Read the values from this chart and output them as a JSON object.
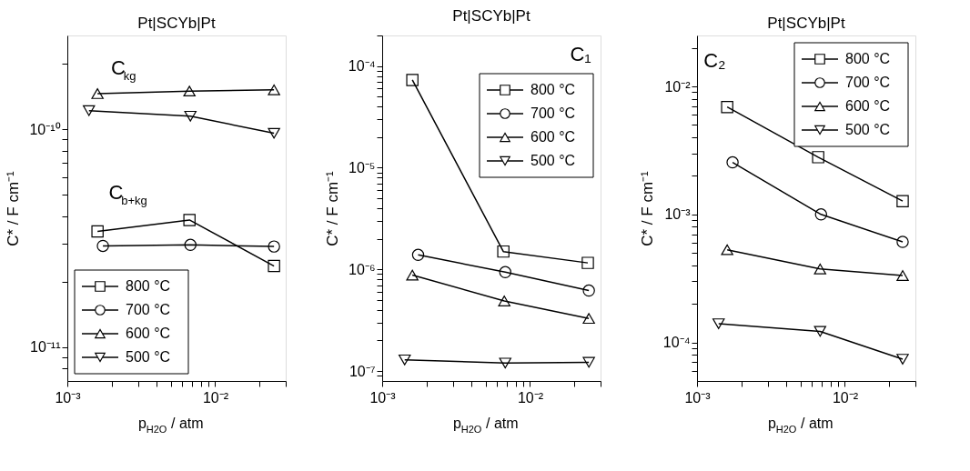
{
  "chart_data": [
    {
      "type": "line",
      "title": "Pt|SCYb|Pt",
      "xlabel": "p$_{H2O}$ / atm",
      "ylabel": "C* / F cm⁻¹",
      "log": "xy",
      "grid": false,
      "legend": "bottom left",
      "line_style": "solid",
      "annotations": [
        "C$_{kg}$",
        "C$_{b+kg}$"
      ],
      "xlim": [
        0.001,
        0.03
      ],
      "ylim": [
        7e-12,
        2.7e-10
      ],
      "xticks": [
        {
          "value": 0.001,
          "label": "10⁻³"
        },
        {
          "value": 0.002,
          "label": null
        },
        {
          "value": 0.003,
          "label": null
        },
        {
          "value": 0.004,
          "label": null
        },
        {
          "value": 0.005,
          "label": null
        },
        {
          "value": 0.006,
          "label": null
        },
        {
          "value": 0.007,
          "label": null
        },
        {
          "value": 0.008,
          "label": null
        },
        {
          "value": 0.009,
          "label": null
        },
        {
          "value": 0.01,
          "label": "10⁻²"
        },
        {
          "value": 0.02,
          "label": null
        },
        {
          "value": 0.03,
          "label": null
        }
      ],
      "yticks": [
        {
          "value": 8e-12,
          "label": null
        },
        {
          "value": 9e-12,
          "label": null
        },
        {
          "value": 1e-11,
          "label": "10⁻¹¹"
        },
        {
          "value": 2e-11,
          "label": null
        },
        {
          "value": 3e-11,
          "label": null
        },
        {
          "value": 4e-11,
          "label": null
        },
        {
          "value": 5e-11,
          "label": null
        },
        {
          "value": 6e-11,
          "label": null
        },
        {
          "value": 7e-11,
          "label": null
        },
        {
          "value": 8e-11,
          "label": null
        },
        {
          "value": 9e-11,
          "label": null
        },
        {
          "value": 1e-10,
          "label": "10⁻¹⁰"
        },
        {
          "value": 2e-10,
          "label": null
        }
      ],
      "series": [
        {
          "name": "800 °C",
          "color": "#000000",
          "marker": "square",
          "x": [
            0.0016,
            0.0067,
            0.025
          ],
          "values": [
            3.4e-11,
            3.84e-11,
            2.36e-11
          ]
        },
        {
          "name": "700 °C",
          "color": "#000000",
          "marker": "circle",
          "x": [
            0.00174,
            0.0068,
            0.025
          ],
          "values": [
            2.92e-11,
            2.95e-11,
            2.9e-11
          ]
        },
        {
          "name": "600 °C",
          "color": "#000000",
          "marker": "triangle",
          "x": [
            0.0016,
            0.0067,
            0.025
          ],
          "values": [
            1.46e-10,
            1.5e-10,
            1.52e-10
          ]
        },
        {
          "name": "500 °C",
          "color": "#000000",
          "marker": "triangle-down",
          "x": [
            0.0014,
            0.0068,
            0.025
          ],
          "values": [
            1.22e-10,
            1.15e-10,
            9.6e-11
          ]
        }
      ]
    },
    {
      "type": "line",
      "title": "Pt|SCYb|Pt",
      "xlabel": "p$_{H2O}$ / atm",
      "ylabel": "C* / F cm⁻¹",
      "log": "xy",
      "grid": false,
      "legend": "top right",
      "line_style": "solid",
      "annotations": [
        "C₁"
      ],
      "xlim": [
        0.001,
        0.03
      ],
      "ylim": [
        8e-08,
        0.0002
      ],
      "xticks": [
        {
          "value": 0.001,
          "label": "10⁻³"
        },
        {
          "value": 0.002,
          "label": null
        },
        {
          "value": 0.003,
          "label": null
        },
        {
          "value": 0.004,
          "label": null
        },
        {
          "value": 0.005,
          "label": null
        },
        {
          "value": 0.006,
          "label": null
        },
        {
          "value": 0.007,
          "label": null
        },
        {
          "value": 0.008,
          "label": null
        },
        {
          "value": 0.009,
          "label": null
        },
        {
          "value": 0.01,
          "label": "10⁻²"
        },
        {
          "value": 0.02,
          "label": null
        },
        {
          "value": 0.03,
          "label": null
        }
      ],
      "yticks": [
        {
          "value": 9e-08,
          "label": null
        },
        {
          "value": 1e-07,
          "label": "10⁻⁷"
        },
        {
          "value": 2e-07,
          "label": null
        },
        {
          "value": 3e-07,
          "label": null
        },
        {
          "value": 4e-07,
          "label": null
        },
        {
          "value": 5e-07,
          "label": null
        },
        {
          "value": 6e-07,
          "label": null
        },
        {
          "value": 7e-07,
          "label": null
        },
        {
          "value": 8e-07,
          "label": null
        },
        {
          "value": 9e-07,
          "label": null
        },
        {
          "value": 1e-06,
          "label": "10⁻⁶"
        },
        {
          "value": 2e-06,
          "label": null
        },
        {
          "value": 3e-06,
          "label": null
        },
        {
          "value": 4e-06,
          "label": null
        },
        {
          "value": 5e-06,
          "label": null
        },
        {
          "value": 6e-06,
          "label": null
        },
        {
          "value": 7e-06,
          "label": null
        },
        {
          "value": 8e-06,
          "label": null
        },
        {
          "value": 9e-06,
          "label": null
        },
        {
          "value": 1e-05,
          "label": "10⁻⁵"
        },
        {
          "value": 2e-05,
          "label": null
        },
        {
          "value": 3e-05,
          "label": null
        },
        {
          "value": 4e-05,
          "label": null
        },
        {
          "value": 5e-05,
          "label": null
        },
        {
          "value": 6e-05,
          "label": null
        },
        {
          "value": 7e-05,
          "label": null
        },
        {
          "value": 8e-05,
          "label": null
        },
        {
          "value": 9e-05,
          "label": null
        },
        {
          "value": 0.0001,
          "label": "10⁻⁴"
        },
        {
          "value": 0.0002,
          "label": null
        }
      ],
      "series": [
        {
          "name": "800 °C",
          "color": "#000000",
          "marker": "square",
          "x": [
            0.0016,
            0.0066,
            0.0246
          ],
          "values": [
            7.3e-05,
            1.5e-06,
            1.16e-06
          ]
        },
        {
          "name": "700 °C",
          "color": "#000000",
          "marker": "circle",
          "x": [
            0.00175,
            0.0068,
            0.025
          ],
          "values": [
            1.39e-06,
            9.4e-07,
            6.2e-07
          ]
        },
        {
          "name": "600 °C",
          "color": "#000000",
          "marker": "triangle",
          "x": [
            0.0016,
            0.0067,
            0.025
          ],
          "values": [
            8.8e-07,
            4.9e-07,
            3.3e-07
          ]
        },
        {
          "name": "500 °C",
          "color": "#000000",
          "marker": "triangle-down",
          "x": [
            0.00142,
            0.0068,
            0.025
          ],
          "values": [
            1.29e-07,
            1.2e-07,
            1.22e-07
          ]
        }
      ]
    },
    {
      "type": "line",
      "title": "Pt|SCYb|Pt",
      "xlabel": "p$_{H2O}$ / atm",
      "ylabel": "C* / F cm⁻¹",
      "log": "xy",
      "grid": false,
      "legend": "top right",
      "line_style": "solid",
      "annotations": [
        "C₂"
      ],
      "xlim": [
        0.001,
        0.03
      ],
      "ylim": [
        5e-05,
        0.025
      ],
      "xticks": [
        {
          "value": 0.001,
          "label": "10⁻³"
        },
        {
          "value": 0.002,
          "label": null
        },
        {
          "value": 0.003,
          "label": null
        },
        {
          "value": 0.004,
          "label": null
        },
        {
          "value": 0.005,
          "label": null
        },
        {
          "value": 0.006,
          "label": null
        },
        {
          "value": 0.007,
          "label": null
        },
        {
          "value": 0.008,
          "label": null
        },
        {
          "value": 0.009,
          "label": null
        },
        {
          "value": 0.01,
          "label": "10⁻²"
        },
        {
          "value": 0.02,
          "label": null
        },
        {
          "value": 0.03,
          "label": null
        }
      ],
      "yticks": [
        {
          "value": 6e-05,
          "label": null
        },
        {
          "value": 7e-05,
          "label": null
        },
        {
          "value": 8e-05,
          "label": null
        },
        {
          "value": 9e-05,
          "label": null
        },
        {
          "value": 0.0001,
          "label": "10⁻⁴"
        },
        {
          "value": 0.0002,
          "label": null
        },
        {
          "value": 0.0003,
          "label": null
        },
        {
          "value": 0.0004,
          "label": null
        },
        {
          "value": 0.0005,
          "label": null
        },
        {
          "value": 0.0006,
          "label": null
        },
        {
          "value": 0.0007,
          "label": null
        },
        {
          "value": 0.0008,
          "label": null
        },
        {
          "value": 0.0009,
          "label": null
        },
        {
          "value": 0.001,
          "label": "10⁻³"
        },
        {
          "value": 0.002,
          "label": null
        },
        {
          "value": 0.003,
          "label": null
        },
        {
          "value": 0.004,
          "label": null
        },
        {
          "value": 0.005,
          "label": null
        },
        {
          "value": 0.006,
          "label": null
        },
        {
          "value": 0.007,
          "label": null
        },
        {
          "value": 0.008,
          "label": null
        },
        {
          "value": 0.009,
          "label": null
        },
        {
          "value": 0.01,
          "label": "10⁻²"
        },
        {
          "value": 0.02,
          "label": null
        }
      ],
      "series": [
        {
          "name": "800 °C",
          "color": "#000000",
          "marker": "square",
          "x": [
            0.0016,
            0.0066,
            0.0246
          ],
          "values": [
            0.0069,
            0.0028,
            0.00127
          ]
        },
        {
          "name": "700 °C",
          "color": "#000000",
          "marker": "circle",
          "x": [
            0.00174,
            0.0069,
            0.0246
          ],
          "values": [
            0.00255,
            0.001,
            0.00061
          ]
        },
        {
          "name": "600 °C",
          "color": "#000000",
          "marker": "triangle",
          "x": [
            0.0016,
            0.0068,
            0.0246
          ],
          "values": [
            0.00053,
            0.000375,
            0.000333
          ]
        },
        {
          "name": "500 °C",
          "color": "#000000",
          "marker": "triangle-down",
          "x": [
            0.0014,
            0.0068,
            0.0246
          ],
          "values": [
            0.00014,
            0.000122,
            7.4e-05
          ]
        }
      ]
    }
  ]
}
